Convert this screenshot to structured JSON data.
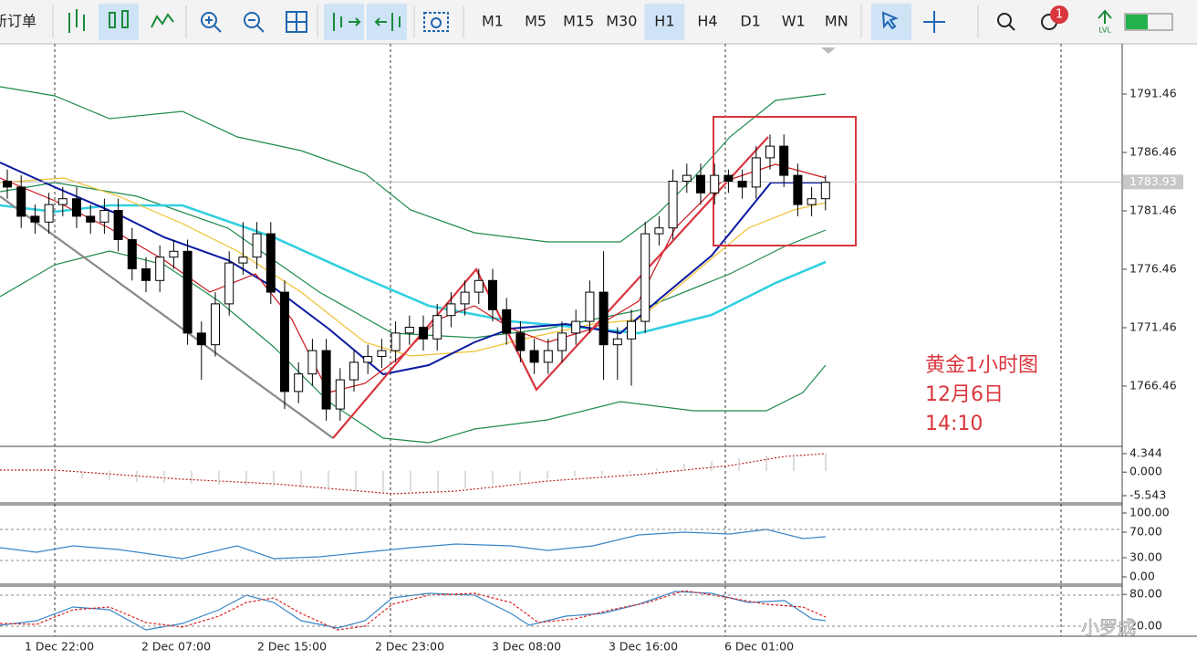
{
  "toolbar": {
    "new_order": "新订单",
    "timeframes": [
      "M1",
      "M5",
      "M15",
      "M30",
      "H1",
      "H4",
      "D1",
      "W1",
      "MN"
    ],
    "active_timeframe": "H1",
    "notification_count": 1,
    "level_label": "LVL"
  },
  "price_chart": {
    "type": "candlestick",
    "ylim": [
      1761.38,
      1795.76
    ],
    "yticks": [
      1791.46,
      1786.46,
      1781.46,
      1776.46,
      1771.46,
      1766.46
    ],
    "current_price": 1783.93,
    "bull_color": "#ffffff",
    "bear_color": "#000000",
    "candles": [
      [
        1784,
        1785,
        1782.5,
        1783.5
      ],
      [
        1783.5,
        1784.5,
        1780,
        1781
      ],
      [
        1781,
        1782,
        1779.5,
        1780.5
      ],
      [
        1780.5,
        1783,
        1779.5,
        1782
      ],
      [
        1782,
        1783.5,
        1781,
        1782.5
      ],
      [
        1782.5,
        1783.5,
        1780,
        1781
      ],
      [
        1781,
        1782,
        1779.5,
        1780.5
      ],
      [
        1780.5,
        1782.5,
        1779.5,
        1781.5
      ],
      [
        1781.5,
        1782.5,
        1778,
        1779
      ],
      [
        1779,
        1780,
        1775.5,
        1776.5
      ],
      [
        1776.5,
        1777.5,
        1774.5,
        1775.5
      ],
      [
        1775.5,
        1778.5,
        1774.5,
        1777.5
      ],
      [
        1777.5,
        1779,
        1776.5,
        1778
      ],
      [
        1778,
        1779,
        1770,
        1771
      ],
      [
        1771,
        1772,
        1767,
        1770
      ],
      [
        1770,
        1774.5,
        1769,
        1773.5
      ],
      [
        1773.5,
        1778,
        1772.5,
        1777
      ],
      [
        1777,
        1780.5,
        1776,
        1777.5
      ],
      [
        1777.5,
        1780.5,
        1776.5,
        1779.5
      ],
      [
        1779.5,
        1780.5,
        1773.5,
        1774.5
      ],
      [
        1774.5,
        1775.5,
        1764.5,
        1766
      ],
      [
        1766,
        1768.5,
        1765,
        1767.5
      ],
      [
        1767.5,
        1770.5,
        1766.5,
        1769.5
      ],
      [
        1769.5,
        1770.5,
        1763.5,
        1764.5
      ],
      [
        1764.5,
        1768,
        1763.5,
        1767
      ],
      [
        1767,
        1769.5,
        1766,
        1768.5
      ],
      [
        1768.5,
        1770,
        1767.5,
        1769
      ],
      [
        1769,
        1770.5,
        1768,
        1769.5
      ],
      [
        1769.5,
        1772,
        1768.5,
        1771
      ],
      [
        1771,
        1772.5,
        1770,
        1771.5
      ],
      [
        1771.5,
        1772.5,
        1769.5,
        1770.5
      ],
      [
        1770.5,
        1773.5,
        1769.5,
        1772.5
      ],
      [
        1772.5,
        1774.5,
        1771.5,
        1773.5
      ],
      [
        1773.5,
        1775.5,
        1772.5,
        1774.5
      ],
      [
        1774.5,
        1776.5,
        1773.5,
        1775.5
      ],
      [
        1775.5,
        1776.5,
        1772,
        1773
      ],
      [
        1773,
        1774,
        1770,
        1771
      ],
      [
        1771,
        1772,
        1768.5,
        1769.5
      ],
      [
        1769.5,
        1770.5,
        1767.5,
        1768.5
      ],
      [
        1768.5,
        1770.5,
        1767.5,
        1769.5
      ],
      [
        1769.5,
        1772,
        1768.5,
        1771
      ],
      [
        1771,
        1773,
        1770,
        1772
      ],
      [
        1772,
        1775.5,
        1771,
        1774.5
      ],
      [
        1774.5,
        1778,
        1767,
        1770
      ],
      [
        1770,
        1771.5,
        1767,
        1770.5
      ],
      [
        1770.5,
        1773,
        1766.5,
        1772
      ],
      [
        1772,
        1780.5,
        1771,
        1779.5
      ],
      [
        1779.5,
        1781,
        1778.5,
        1780
      ],
      [
        1780,
        1785,
        1779,
        1784
      ],
      [
        1784,
        1785.5,
        1783,
        1784.5
      ],
      [
        1784.5,
        1785.5,
        1782,
        1783
      ],
      [
        1783,
        1785.5,
        1782,
        1784.5
      ],
      [
        1784.5,
        1785,
        1783,
        1784
      ],
      [
        1784,
        1785,
        1782.5,
        1783.5
      ],
      [
        1783.5,
        1787,
        1782.5,
        1786
      ],
      [
        1786,
        1788,
        1785,
        1787
      ],
      [
        1787,
        1788,
        1783.5,
        1784.5
      ],
      [
        1784.5,
        1785.5,
        1781,
        1782
      ],
      [
        1782,
        1783.5,
        1781,
        1782.5
      ],
      [
        1782.5,
        1784.5,
        1781.5,
        1783.9
      ]
    ]
  },
  "time_axis": [
    "1 Dec 22:00",
    "2 Dec 07:00",
    "2 Dec 15:00",
    "2 Dec 23:00",
    "3 Dec 08:00",
    "3 Dec 16:00",
    "6 Dec 01:00"
  ],
  "annotation": [
    "黄金1小时图",
    "12月6日",
    "14:10"
  ],
  "macd_panel": {
    "ylim": [
      -7.26,
      5.85
    ],
    "yticks": [
      4.344,
      {
        "value": 0,
        "label": "0.000"
      },
      -5.543
    ]
  },
  "rsi_panel": {
    "ylim": [
      -11.4,
      112.9
    ],
    "yticks": [
      {
        "value": 100,
        "label": "100.00"
      },
      {
        "value": 70,
        "label": "70.00"
      },
      {
        "value": 30,
        "label": "30.00"
      },
      {
        "value": 0,
        "label": "0.00"
      }
    ]
  },
  "stoch_panel": {
    "ylim": [
      0.6,
      95.9
    ],
    "yticks": [
      {
        "value": 80,
        "label": "80.00"
      },
      {
        "value": 20,
        "label": "20.00"
      }
    ]
  },
  "watermark": "小罗成"
}
